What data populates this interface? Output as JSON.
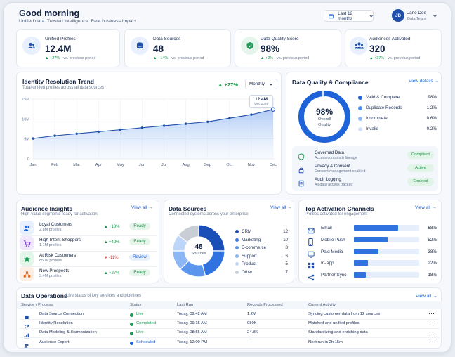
{
  "header": {
    "greeting": "Good morning",
    "tagline": "Unified data. Trusted intelligence. Real business impact.",
    "date_range": "Last 12 months",
    "user_initials": "JD",
    "user_name": "Jane Doe",
    "user_team": "Data Team"
  },
  "kpis": [
    {
      "label": "Unified Profiles",
      "value": "12.4M",
      "delta": "+27%",
      "note": "vs. previous period",
      "icon": "users-icon"
    },
    {
      "label": "Data Sources",
      "value": "48",
      "delta": "+14%",
      "note": "vs. previous period",
      "icon": "database-icon"
    },
    {
      "label": "Data Quality Score",
      "value": "98%",
      "delta": "+2%",
      "note": "vs. previous period",
      "icon": "shield-check-icon"
    },
    {
      "label": "Audiences Activated",
      "value": "320",
      "delta": "+37%",
      "note": "vs. previous period",
      "icon": "audience-icon"
    }
  ],
  "trend": {
    "title": "Identity Resolution Trend",
    "subtitle": "Total unified profiles across all data sources",
    "delta": "+27%",
    "period": "Monthly",
    "tooltip_value": "12.4M",
    "tooltip_date": "Dec 2024"
  },
  "chart_data": {
    "type": "area",
    "categories": [
      "Jan",
      "Feb",
      "Mar",
      "Apr",
      "May",
      "Jun",
      "Jul",
      "Aug",
      "Sep",
      "Oct",
      "Nov",
      "Dec"
    ],
    "values": [
      5.1,
      5.8,
      6.3,
      6.8,
      7.3,
      7.8,
      8.3,
      8.8,
      9.3,
      10.2,
      11.1,
      12.4
    ],
    "y_ticks": [
      "0",
      "5M",
      "10M",
      "15M"
    ],
    "ylim": [
      0,
      15
    ],
    "grid": true
  },
  "quality": {
    "title": "Data Quality & Compliance",
    "link": "View details",
    "score": "98%",
    "score_label_1": "Overall",
    "score_label_2": "Quality",
    "legend": [
      {
        "label": "Valid & Complete",
        "value": "98%",
        "color": "#1f63d8"
      },
      {
        "label": "Duplicate Records",
        "value": "1.2%",
        "color": "#4f8ff0"
      },
      {
        "label": "Incomplete",
        "value": "0.6%",
        "color": "#8fb8f6"
      },
      {
        "label": "Invalid",
        "value": "0.2%",
        "color": "#cfe0fb"
      }
    ],
    "compliance": [
      {
        "title": "Governed Data",
        "sub": "Access controls & lineage",
        "status": "Compliant",
        "icon": "shield-icon"
      },
      {
        "title": "Privacy & Consent",
        "sub": "Consent management enabled",
        "status": "Active",
        "icon": "lock-icon"
      },
      {
        "title": "Audit Logging",
        "sub": "All data access tracked",
        "status": "Enabled",
        "icon": "document-icon"
      }
    ]
  },
  "audience": {
    "title": "Audience Insights",
    "subtitle": "High-value segments ready for activation",
    "link": "View all",
    "items": [
      {
        "name": "Loyal Customers",
        "count": "2.8M profiles",
        "delta": "+18%",
        "status": "Ready",
        "dir": "up",
        "color": "#1f63d8"
      },
      {
        "name": "High Intent Shoppers",
        "count": "1.1M profiles",
        "delta": "+42%",
        "status": "Ready",
        "dir": "up",
        "color": "#7a3fd6"
      },
      {
        "name": "At Risk Customers",
        "count": "850K profiles",
        "delta": "-11%",
        "status": "Review",
        "dir": "down",
        "color": "#1d9a56"
      },
      {
        "name": "New Prospects",
        "count": "3.4M profiles",
        "delta": "+27%",
        "status": "Ready",
        "dir": "up",
        "color": "#e0661d"
      }
    ]
  },
  "sources": {
    "title": "Data Sources",
    "subtitle": "Connected systems across your enterprise",
    "link": "View all",
    "center_value": "48",
    "center_label": "Sources",
    "items": [
      {
        "label": "CRM",
        "value": 12,
        "color": "#1a4fb8"
      },
      {
        "label": "Marketing",
        "value": 10,
        "color": "#2f72e0"
      },
      {
        "label": "E-commerce",
        "value": 8,
        "color": "#5b95ee"
      },
      {
        "label": "Support",
        "value": 6,
        "color": "#8db6f4"
      },
      {
        "label": "Product",
        "value": 5,
        "color": "#bdd5f8"
      },
      {
        "label": "Other",
        "value": 7,
        "color": "#c9ced6"
      }
    ]
  },
  "activation": {
    "title": "Top Activation Channels",
    "subtitle": "Profiles activated for engagement",
    "link": "View all",
    "items": [
      {
        "label": "Email",
        "value": "68%",
        "fraction": 0.68,
        "icon": "mail-icon"
      },
      {
        "label": "Mobile Push",
        "value": "52%",
        "fraction": 0.52,
        "icon": "mobile-icon"
      },
      {
        "label": "Paid Media",
        "value": "38%",
        "fraction": 0.38,
        "icon": "media-icon"
      },
      {
        "label": "In-App",
        "value": "22%",
        "fraction": 0.22,
        "icon": "app-icon"
      },
      {
        "label": "Partner Sync",
        "value": "18%",
        "fraction": 0.18,
        "icon": "share-icon"
      }
    ]
  },
  "operations": {
    "title": "Data Operations",
    "subtitle": "Live status of key services and pipelines",
    "link": "View all",
    "columns": [
      "Service / Process",
      "Status",
      "Last Run",
      "Records Processed",
      "Current Activity"
    ],
    "rows": [
      {
        "name": "Data Source Connection",
        "status": "Live",
        "status_color": "#1d9a56",
        "last_run": "Today, 09:42 AM",
        "records": "1.2M",
        "activity": "Syncing customer data from 12 sources",
        "icon": "database-icon"
      },
      {
        "name": "Identity Resolution",
        "status": "Completed",
        "status_color": "#1d9a56",
        "last_run": "Today, 09:15 AM",
        "records": "980K",
        "activity": "Matched and unified profiles",
        "icon": "refresh-icon"
      },
      {
        "name": "Data Modeling & Harmonization",
        "status": "Live",
        "status_color": "#1d9a56",
        "last_run": "Today, 08:55 AM",
        "records": "24.8K",
        "activity": "Standardizing and enriching data",
        "icon": "bar-chart-icon"
      },
      {
        "name": "Audience Export",
        "status": "Scheduled",
        "status_color": "#1f63d8",
        "last_run": "Today, 12:00 PM",
        "records": "—",
        "activity": "Next run in 2h 15m",
        "icon": "users-icon"
      }
    ]
  }
}
